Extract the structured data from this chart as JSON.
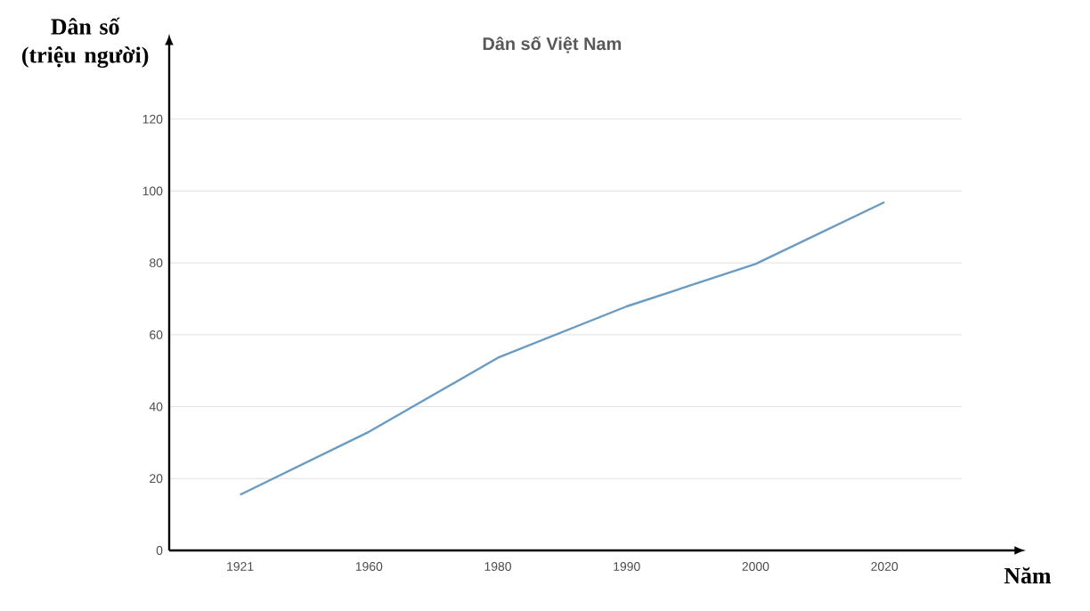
{
  "chart_data": {
    "type": "line",
    "title": "Dân số Việt Nam",
    "xlabel": "Năm",
    "ylabel": "Dân số (triệu người)",
    "categories": [
      "1921",
      "1960",
      "1980",
      "1990",
      "2000",
      "2020"
    ],
    "values": [
      15.5,
      33,
      53.6,
      67.9,
      79.7,
      96.9
    ],
    "color": "#6a9bc3",
    "ylim": [
      0,
      141
    ],
    "yticks": [
      0,
      20,
      40,
      60,
      80,
      100,
      120
    ],
    "grid": "y"
  }
}
